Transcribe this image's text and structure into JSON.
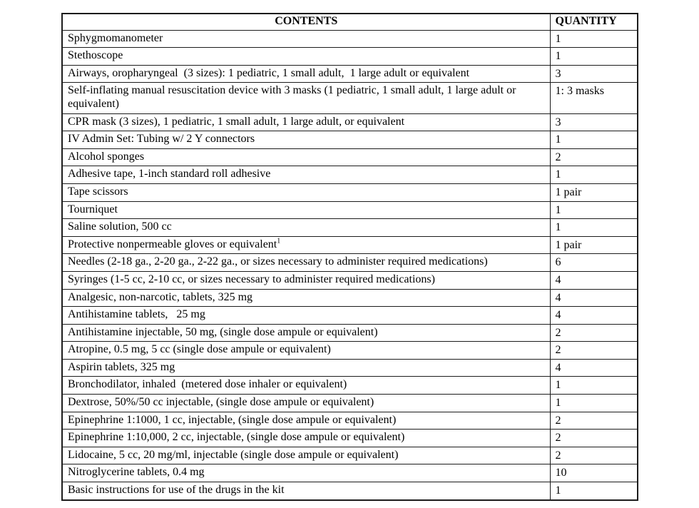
{
  "colors": {
    "background": "#ffffff",
    "border": "#1c1c1c",
    "text": "#000000"
  },
  "table": {
    "headers": [
      {
        "label": "CONTENTS"
      },
      {
        "label": "QUANTITY"
      }
    ],
    "rows": [
      {
        "contents": "Sphygmomanometer",
        "quantity": "1"
      },
      {
        "contents": "Stethoscope",
        "quantity": "1"
      },
      {
        "contents": "Airways, oropharyngeal  (3 sizes): 1 pediatric, 1 small adult,  1 large adult or equivalent",
        "quantity": "3"
      },
      {
        "contents": "Self-inflating manual resuscitation device with 3 masks (1 pediatric, 1 small adult, 1 large adult or equivalent)",
        "quantity": "1: 3 masks"
      },
      {
        "contents": "CPR mask (3 sizes), 1 pediatric, 1 small adult, 1 large adult, or equivalent",
        "quantity": "3"
      },
      {
        "contents": "IV Admin Set: Tubing w/ 2 Y connectors",
        "quantity": "1"
      },
      {
        "contents": "Alcohol sponges",
        "quantity": "2"
      },
      {
        "contents": "Adhesive tape, 1-inch standard roll adhesive",
        "quantity": "1"
      },
      {
        "contents": "Tape scissors",
        "quantity": "1 pair"
      },
      {
        "contents": "Tourniquet",
        "quantity": "1"
      },
      {
        "contents": "Saline solution, 500 cc",
        "quantity": "1"
      },
      {
        "contents": "Protective nonpermeable gloves or equivalent",
        "superscript": "1",
        "quantity": "1 pair"
      },
      {
        "contents": "Needles (2-18 ga., 2-20 ga., 2-22 ga., or sizes necessary to administer required medications)",
        "quantity": "6"
      },
      {
        "contents": "Syringes (1-5 cc, 2-10 cc, or sizes necessary to administer required medications)",
        "quantity": "4"
      },
      {
        "contents": "Analgesic, non-narcotic, tablets, 325 mg",
        "quantity": "4"
      },
      {
        "contents": "Antihistamine tablets,   25 mg",
        "quantity": "4"
      },
      {
        "contents": "Antihistamine injectable, 50 mg, (single dose ampule or equivalent)",
        "quantity": "2"
      },
      {
        "contents": "Atropine, 0.5 mg, 5 cc (single dose ampule or equivalent)",
        "quantity": "2"
      },
      {
        "contents": "Aspirin tablets, 325 mg",
        "quantity": "4"
      },
      {
        "contents": "Bronchodilator, inhaled  (metered dose inhaler or equivalent)",
        "quantity": "1"
      },
      {
        "contents": "Dextrose, 50%/50 cc injectable, (single dose ampule or equivalent)",
        "quantity": "1"
      },
      {
        "contents": "Epinephrine 1:1000, 1 cc, injectable, (single dose ampule or equivalent)",
        "quantity": "2"
      },
      {
        "contents": "Epinephrine 1:10,000, 2 cc, injectable, (single dose ampule or equivalent)",
        "quantity": "2"
      },
      {
        "contents": "Lidocaine, 5 cc, 20 mg/ml, injectable (single dose ampule or equivalent)",
        "quantity": "2"
      },
      {
        "contents": "Nitroglycerine tablets, 0.4 mg",
        "quantity": "10"
      },
      {
        "contents": "Basic instructions for use of the drugs in the kit",
        "quantity": "1"
      }
    ]
  }
}
